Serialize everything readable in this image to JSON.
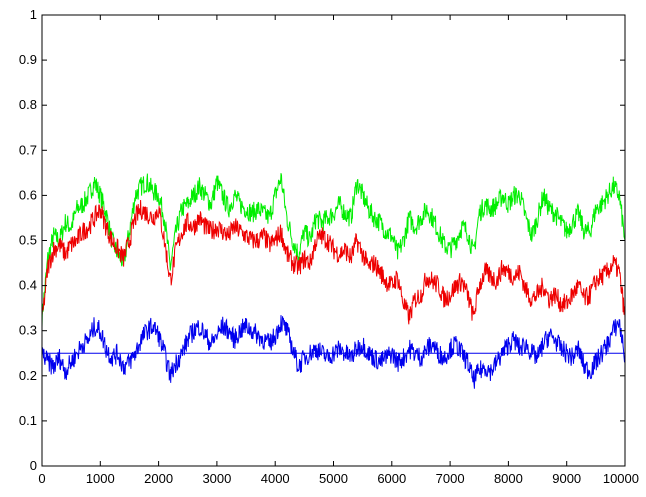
{
  "chart_data": {
    "type": "line",
    "title": "",
    "xlabel": "",
    "ylabel": "",
    "xlim": [
      0,
      10000
    ],
    "ylim": [
      0,
      1
    ],
    "grid": false,
    "x_ticks": [
      0,
      1000,
      2000,
      3000,
      4000,
      5000,
      6000,
      7000,
      8000,
      9000,
      10000
    ],
    "y_ticks": [
      0,
      0.1,
      0.2,
      0.3,
      0.4,
      0.5,
      0.6,
      0.7,
      0.8,
      0.9,
      1
    ],
    "x_tick_labels": [
      "0",
      "1000",
      "2000",
      "3000",
      "4000",
      "5000",
      "6000",
      "7000",
      "8000",
      "9000",
      "10000"
    ],
    "y_tick_labels": [
      "0",
      "0.1",
      "0.2",
      "0.3",
      "0.4",
      "0.5",
      "0.6",
      "0.7",
      "0.8",
      "0.9",
      "1"
    ],
    "series": [
      {
        "color": "#00ee00",
        "x": [
          0,
          100,
          200,
          300,
          400,
          500,
          600,
          700,
          800,
          900,
          1000,
          1100,
          1200,
          1300,
          1400,
          1500,
          1600,
          1700,
          1800,
          1900,
          2000,
          2100,
          2200,
          2300,
          2400,
          2500,
          2600,
          2700,
          2800,
          2900,
          3000,
          3100,
          3200,
          3300,
          3400,
          3500,
          3600,
          3700,
          3800,
          3900,
          4000,
          4100,
          4200,
          4300,
          4400,
          4500,
          4600,
          4700,
          4800,
          4900,
          5000,
          5100,
          5200,
          5300,
          5400,
          5500,
          5600,
          5700,
          5800,
          5900,
          6000,
          6100,
          6200,
          6300,
          6400,
          6500,
          6600,
          6700,
          6800,
          6900,
          7000,
          7100,
          7200,
          7300,
          7400,
          7500,
          7600,
          7700,
          7800,
          7900,
          8000,
          8100,
          8200,
          8300,
          8400,
          8500,
          8600,
          8700,
          8800,
          8900,
          9000,
          9100,
          9200,
          9300,
          9400,
          9500,
          9600,
          9700,
          9800,
          9900,
          10000
        ],
        "y": [
          0.33,
          0.46,
          0.51,
          0.5,
          0.54,
          0.53,
          0.57,
          0.58,
          0.6,
          0.63,
          0.6,
          0.56,
          0.5,
          0.47,
          0.45,
          0.52,
          0.6,
          0.62,
          0.63,
          0.61,
          0.6,
          0.55,
          0.44,
          0.52,
          0.57,
          0.58,
          0.6,
          0.62,
          0.6,
          0.58,
          0.63,
          0.6,
          0.57,
          0.6,
          0.58,
          0.57,
          0.56,
          0.57,
          0.56,
          0.55,
          0.6,
          0.64,
          0.55,
          0.5,
          0.47,
          0.52,
          0.5,
          0.55,
          0.54,
          0.55,
          0.56,
          0.58,
          0.56,
          0.55,
          0.63,
          0.6,
          0.57,
          0.55,
          0.54,
          0.52,
          0.51,
          0.47,
          0.5,
          0.55,
          0.53,
          0.55,
          0.57,
          0.55,
          0.52,
          0.49,
          0.48,
          0.5,
          0.53,
          0.52,
          0.47,
          0.56,
          0.58,
          0.57,
          0.58,
          0.6,
          0.58,
          0.6,
          0.6,
          0.55,
          0.51,
          0.55,
          0.6,
          0.57,
          0.56,
          0.54,
          0.52,
          0.54,
          0.56,
          0.52,
          0.52,
          0.57,
          0.58,
          0.6,
          0.62,
          0.6,
          0.5
        ]
      },
      {
        "color": "#ee0000",
        "x": [
          0,
          100,
          200,
          300,
          400,
          500,
          600,
          700,
          800,
          900,
          1000,
          1100,
          1200,
          1300,
          1400,
          1500,
          1600,
          1700,
          1800,
          1900,
          2000,
          2100,
          2200,
          2300,
          2400,
          2500,
          2600,
          2700,
          2800,
          2900,
          3000,
          3100,
          3200,
          3300,
          3400,
          3500,
          3600,
          3700,
          3800,
          3900,
          4000,
          4100,
          4200,
          4300,
          4400,
          4500,
          4600,
          4700,
          4800,
          4900,
          5000,
          5100,
          5200,
          5300,
          5400,
          5500,
          5600,
          5700,
          5800,
          5900,
          6000,
          6100,
          6200,
          6300,
          6400,
          6500,
          6600,
          6700,
          6800,
          6900,
          7000,
          7100,
          7200,
          7300,
          7400,
          7500,
          7600,
          7700,
          7800,
          7900,
          8000,
          8100,
          8200,
          8300,
          8400,
          8500,
          8600,
          8700,
          8800,
          8900,
          9000,
          9100,
          9200,
          9300,
          9400,
          9500,
          9600,
          9700,
          9800,
          9900,
          10000
        ],
        "y": [
          0.32,
          0.44,
          0.48,
          0.49,
          0.47,
          0.49,
          0.5,
          0.52,
          0.53,
          0.55,
          0.57,
          0.53,
          0.5,
          0.48,
          0.46,
          0.5,
          0.55,
          0.57,
          0.56,
          0.55,
          0.57,
          0.5,
          0.41,
          0.48,
          0.52,
          0.54,
          0.53,
          0.55,
          0.53,
          0.52,
          0.53,
          0.52,
          0.51,
          0.53,
          0.52,
          0.51,
          0.5,
          0.5,
          0.51,
          0.49,
          0.5,
          0.52,
          0.47,
          0.45,
          0.44,
          0.46,
          0.45,
          0.5,
          0.51,
          0.5,
          0.48,
          0.47,
          0.48,
          0.46,
          0.5,
          0.47,
          0.44,
          0.45,
          0.43,
          0.41,
          0.4,
          0.42,
          0.36,
          0.33,
          0.37,
          0.38,
          0.42,
          0.41,
          0.4,
          0.37,
          0.38,
          0.4,
          0.41,
          0.38,
          0.33,
          0.4,
          0.43,
          0.42,
          0.41,
          0.44,
          0.43,
          0.42,
          0.43,
          0.39,
          0.37,
          0.38,
          0.4,
          0.37,
          0.38,
          0.36,
          0.36,
          0.38,
          0.4,
          0.37,
          0.38,
          0.41,
          0.42,
          0.43,
          0.45,
          0.43,
          0.33
        ]
      },
      {
        "color": "#0000ee",
        "x": [
          0,
          100,
          200,
          300,
          400,
          500,
          600,
          700,
          800,
          900,
          1000,
          1100,
          1200,
          1300,
          1400,
          1500,
          1600,
          1700,
          1800,
          1900,
          2000,
          2100,
          2200,
          2300,
          2400,
          2500,
          2600,
          2700,
          2800,
          2900,
          3000,
          3100,
          3200,
          3300,
          3400,
          3500,
          3600,
          3700,
          3800,
          3900,
          4000,
          4100,
          4200,
          4300,
          4400,
          4500,
          4600,
          4700,
          4800,
          4900,
          5000,
          5100,
          5200,
          5300,
          5400,
          5500,
          5600,
          5700,
          5800,
          5900,
          6000,
          6100,
          6200,
          6300,
          6400,
          6500,
          6600,
          6700,
          6800,
          6900,
          7000,
          7100,
          7200,
          7300,
          7400,
          7500,
          7600,
          7700,
          7800,
          7900,
          8000,
          8100,
          8200,
          8300,
          8400,
          8500,
          8600,
          8700,
          8800,
          8900,
          9000,
          9100,
          9200,
          9300,
          9400,
          9500,
          9600,
          9700,
          9800,
          9900,
          10000
        ],
        "y": [
          0.25,
          0.23,
          0.22,
          0.24,
          0.21,
          0.23,
          0.25,
          0.27,
          0.28,
          0.31,
          0.3,
          0.26,
          0.24,
          0.25,
          0.22,
          0.23,
          0.25,
          0.28,
          0.3,
          0.31,
          0.29,
          0.25,
          0.2,
          0.23,
          0.25,
          0.28,
          0.3,
          0.31,
          0.29,
          0.27,
          0.29,
          0.31,
          0.3,
          0.28,
          0.3,
          0.31,
          0.3,
          0.29,
          0.28,
          0.27,
          0.29,
          0.32,
          0.3,
          0.26,
          0.22,
          0.24,
          0.25,
          0.26,
          0.25,
          0.24,
          0.25,
          0.26,
          0.25,
          0.24,
          0.26,
          0.27,
          0.25,
          0.24,
          0.23,
          0.24,
          0.25,
          0.23,
          0.24,
          0.26,
          0.25,
          0.24,
          0.26,
          0.27,
          0.25,
          0.24,
          0.26,
          0.27,
          0.25,
          0.23,
          0.19,
          0.21,
          0.22,
          0.21,
          0.23,
          0.25,
          0.27,
          0.28,
          0.26,
          0.27,
          0.25,
          0.24,
          0.27,
          0.29,
          0.28,
          0.26,
          0.25,
          0.24,
          0.26,
          0.22,
          0.21,
          0.23,
          0.25,
          0.27,
          0.3,
          0.32,
          0.24
        ]
      },
      {
        "color": "#0000ee",
        "x": [
          0,
          10000
        ],
        "y": [
          0.25,
          0.25
        ]
      }
    ]
  }
}
